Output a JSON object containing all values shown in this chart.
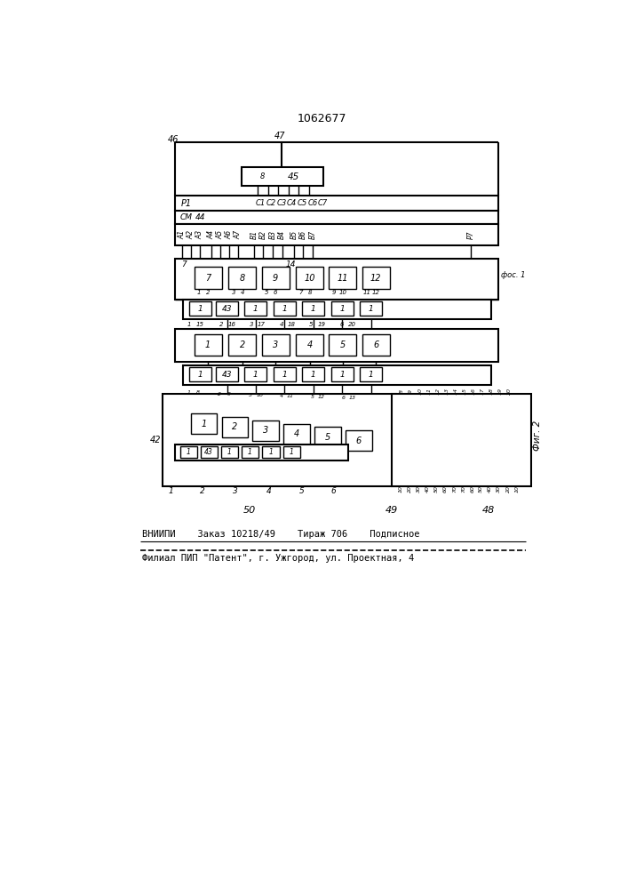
{
  "title": "1062677",
  "bottom_text1": "ВНИИПИ    Заказ 10218/49    Тираж 706    Подписное",
  "bottom_text2": "Филиал ПИП \"Патент\", г. Ужгород, ул. Проектная, 4",
  "fig2_label": "Фиг. 2",
  "fos1_label": "фос. 1",
  "bg_color": "#ffffff",
  "line_color": "#000000",
  "label_46": "46",
  "label_47": "47",
  "label_45": "45",
  "label_8_small": "8",
  "label_P1": "P1",
  "c_labels": [
    "C1",
    "C2",
    "C3",
    "C4",
    "C5",
    "C6",
    "C7"
  ],
  "sm_label": "СМ",
  "label_44": "44",
  "a_labels": [
    "A1",
    "A2",
    "A3",
    "A4",
    "A5",
    "A6",
    "A7",
    "B1",
    "B2",
    "B3",
    "B4",
    "B5",
    "B6",
    "B7",
    "P7"
  ],
  "label_7_top": "7",
  "label_14": "14",
  "row1_blocks": [
    "7",
    "8",
    "9",
    "10",
    "11",
    "12"
  ],
  "row2_blocks": [
    "1",
    "2",
    "3",
    "4",
    "5",
    "6"
  ],
  "small_blocks_7": [
    "1",
    "43",
    "1",
    "1",
    "1",
    "1",
    "1"
  ],
  "small_blocks_6": [
    "1",
    "43",
    "1",
    "1",
    "1",
    "1"
  ],
  "label_42": "42",
  "section_labels": [
    "50",
    "49",
    "48"
  ],
  "right_top_nums": [
    "8",
    "9",
    "10",
    "11",
    "12",
    "13",
    "14",
    "15",
    "16",
    "17",
    "18",
    "19",
    "20"
  ],
  "right_bot_nums": [
    "10",
    "20",
    "30",
    "40",
    "50",
    "60",
    "70",
    "70",
    "60",
    "50",
    "40",
    "30",
    "20",
    "10"
  ]
}
